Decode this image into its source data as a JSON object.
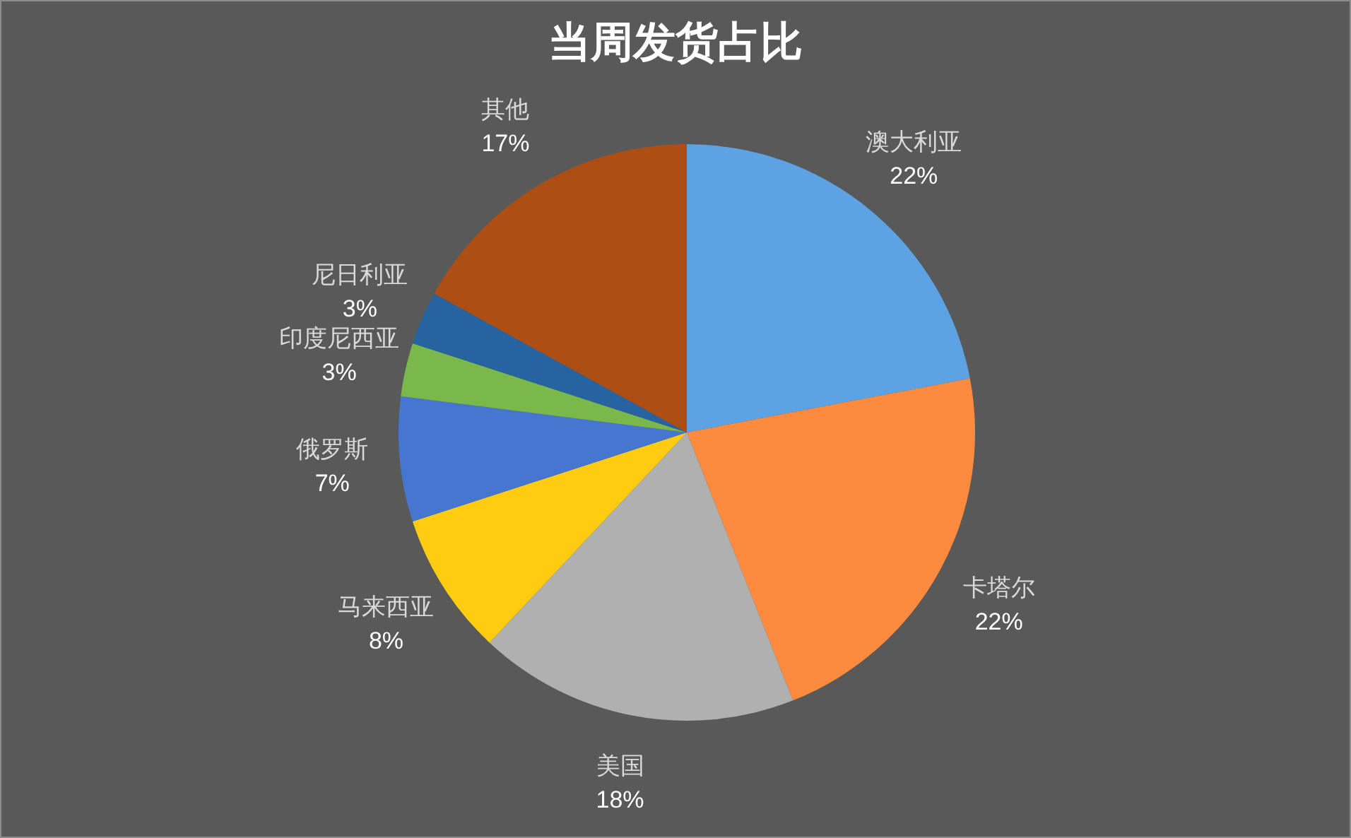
{
  "chart_data": {
    "type": "pie",
    "title": "当周发货占比",
    "categories": [
      "澳大利亚",
      "卡塔尔",
      "美国",
      "马来西亚",
      "俄罗斯",
      "印度尼西亚",
      "尼日利亚",
      "其他"
    ],
    "values": [
      22,
      22,
      18,
      8,
      7,
      3,
      3,
      17
    ],
    "value_labels": [
      "22%",
      "22%",
      "18%",
      "8%",
      "7%",
      "3%",
      "3%",
      "17%"
    ],
    "colors": [
      "#5da2e3",
      "#fd8b3f",
      "#b0b0b0",
      "#ffcc12",
      "#4577d0",
      "#7ab84c",
      "#2763a0",
      "#ad4e14"
    ]
  }
}
